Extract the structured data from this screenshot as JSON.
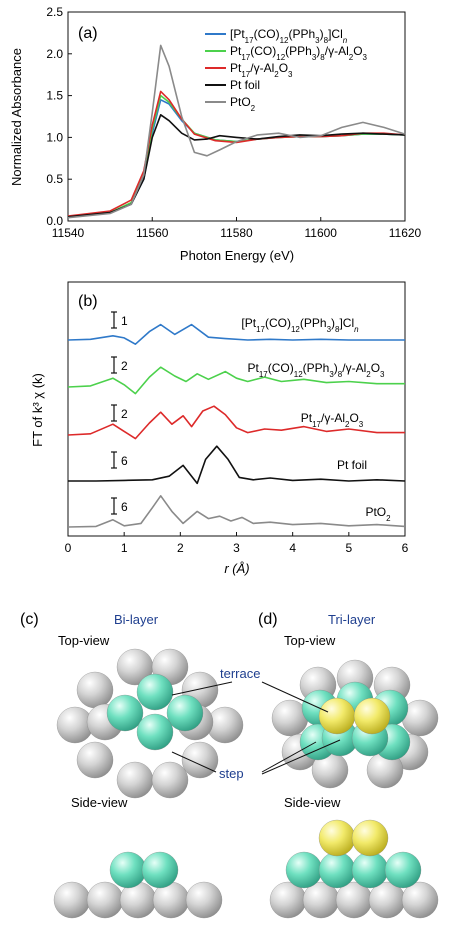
{
  "colors": {
    "blue": "#2f79c9",
    "green": "#4cd14c",
    "red": "#dd2a2a",
    "black": "#111111",
    "gray": "#8a8a8a",
    "teal": "#6fe0c0",
    "silver": "#d0d0d0",
    "yellow": "#f2ea6a",
    "label_blue": "#1f3f8f"
  },
  "chart_data": [
    {
      "panel": "(a)",
      "type": "line",
      "xlabel": "Photon Energy (eV)",
      "ylabel": "Normalized Absorbance",
      "xlim": [
        11540,
        11620
      ],
      "ylim": [
        0,
        2.5
      ],
      "xticks": [
        "11540",
        "11560",
        "11580",
        "11600",
        "11620"
      ],
      "yticks": [
        "0.0",
        "0.5",
        "1.0",
        "1.5",
        "2.0",
        "2.5"
      ],
      "legend_position": "top-right",
      "legend": [
        {
          "pre": "[Pt",
          "parts": [
            [
              "17",
              "sub"
            ],
            [
              "(CO)",
              ""
            ],
            [
              "12",
              "sub"
            ],
            [
              "(PPh",
              ""
            ],
            [
              "3",
              "sub"
            ],
            [
              ")",
              ""
            ],
            [
              "8",
              "sub"
            ],
            [
              "]Cl",
              ""
            ],
            [
              "n",
              "sub-i"
            ]
          ],
          "color": "blue"
        },
        {
          "parts": [
            [
              "Pt",
              ""
            ],
            [
              "17",
              "sub"
            ],
            [
              "(CO)",
              ""
            ],
            [
              "12",
              "sub"
            ],
            [
              "(PPh",
              ""
            ],
            [
              "3",
              "sub"
            ],
            [
              ")",
              ""
            ],
            [
              "8",
              "sub"
            ],
            [
              "/γ-Al",
              ""
            ],
            [
              "2",
              "sub"
            ],
            [
              "O",
              ""
            ],
            [
              "3",
              "sub"
            ]
          ],
          "color": "green"
        },
        {
          "parts": [
            [
              "Pt",
              ""
            ],
            [
              "17",
              "sub"
            ],
            [
              "/γ-Al",
              ""
            ],
            [
              "2",
              "sub"
            ],
            [
              "O",
              ""
            ],
            [
              "3",
              "sub"
            ]
          ],
          "color": "red"
        },
        {
          "parts": [
            [
              "Pt foil",
              ""
            ]
          ],
          "color": "black"
        },
        {
          "parts": [
            [
              "PtO",
              ""
            ],
            [
              "2",
              "sub"
            ]
          ],
          "color": "gray"
        }
      ],
      "series": [
        {
          "color": "blue",
          "x": [
            11540,
            11550,
            11555,
            11558,
            11560,
            11562,
            11564,
            11567,
            11570,
            11575,
            11580,
            11585,
            11590,
            11595,
            11600,
            11605,
            11610,
            11615,
            11620
          ],
          "y": [
            0.05,
            0.1,
            0.2,
            0.5,
            1.05,
            1.45,
            1.4,
            1.2,
            1.05,
            0.97,
            0.95,
            0.98,
            1.0,
            1.01,
            1.01,
            1.02,
            1.04,
            1.04,
            1.03
          ]
        },
        {
          "color": "green",
          "x": [
            11540,
            11550,
            11555,
            11558,
            11560,
            11562,
            11564,
            11567,
            11570,
            11575,
            11580,
            11585,
            11590,
            11595,
            11600,
            11605,
            11610,
            11615,
            11620
          ],
          "y": [
            0.05,
            0.1,
            0.22,
            0.55,
            1.1,
            1.5,
            1.42,
            1.22,
            1.05,
            0.97,
            0.95,
            0.98,
            1.0,
            1.01,
            1.01,
            1.02,
            1.04,
            1.04,
            1.03
          ]
        },
        {
          "color": "red",
          "x": [
            11540,
            11550,
            11555,
            11558,
            11560,
            11562,
            11564,
            11567,
            11570,
            11575,
            11580,
            11585,
            11590,
            11595,
            11600,
            11605,
            11610,
            11615,
            11620
          ],
          "y": [
            0.06,
            0.12,
            0.25,
            0.6,
            1.15,
            1.55,
            1.45,
            1.22,
            1.04,
            0.96,
            0.94,
            0.98,
            1.0,
            1.01,
            1.01,
            1.02,
            1.05,
            1.05,
            1.03
          ]
        },
        {
          "color": "black",
          "x": [
            11540,
            11550,
            11555,
            11558,
            11560,
            11562,
            11564,
            11567,
            11570,
            11573,
            11576,
            11580,
            11585,
            11590,
            11595,
            11600,
            11605,
            11610,
            11615,
            11620
          ],
          "y": [
            0.05,
            0.1,
            0.2,
            0.5,
            1.0,
            1.27,
            1.2,
            1.05,
            0.97,
            0.98,
            1.02,
            1.0,
            0.98,
            1.01,
            1.03,
            1.02,
            1.04,
            1.05,
            1.04,
            1.03
          ]
        },
        {
          "color": "gray",
          "x": [
            11540,
            11550,
            11555,
            11558,
            11560,
            11562,
            11564,
            11567,
            11570,
            11573,
            11576,
            11580,
            11585,
            11590,
            11595,
            11600,
            11605,
            11610,
            11615,
            11620
          ],
          "y": [
            0.04,
            0.09,
            0.2,
            0.55,
            1.3,
            2.1,
            1.85,
            1.25,
            0.82,
            0.78,
            0.85,
            0.95,
            1.03,
            1.05,
            1.0,
            1.02,
            1.12,
            1.18,
            1.12,
            1.04
          ]
        }
      ]
    },
    {
      "panel": "(b)",
      "type": "line",
      "xlabel": "r (Å)",
      "ylabel": "FT of k³ χ (k)",
      "xlim": [
        0,
        6
      ],
      "xticks": [
        "0",
        "1",
        "2",
        "3",
        "4",
        "5",
        "6"
      ],
      "scale_bars": [
        "1",
        "2",
        "2",
        "6",
        "6"
      ],
      "labels": [
        {
          "parts": [
            [
              "[Pt",
              ""
            ],
            [
              "17",
              "sub"
            ],
            [
              "(CO)",
              ""
            ],
            [
              "12",
              "sub"
            ],
            [
              "(PPh",
              ""
            ],
            [
              "3",
              "sub"
            ],
            [
              ")",
              ""
            ],
            [
              "8",
              "sub"
            ],
            [
              "]Cl",
              ""
            ],
            [
              "n",
              "sub-i"
            ]
          ]
        },
        {
          "parts": [
            [
              "Pt",
              ""
            ],
            [
              "17",
              "sub"
            ],
            [
              "(CO)",
              ""
            ],
            [
              "12",
              "sub"
            ],
            [
              "(PPh",
              ""
            ],
            [
              "3",
              "sub"
            ],
            [
              ")",
              ""
            ],
            [
              "8",
              "sub"
            ],
            [
              "/γ-Al",
              ""
            ],
            [
              "2",
              "sub"
            ],
            [
              "O",
              ""
            ],
            [
              "3",
              "sub"
            ]
          ]
        },
        {
          "parts": [
            [
              "Pt",
              ""
            ],
            [
              "17",
              "sub"
            ],
            [
              "/γ-Al",
              ""
            ],
            [
              "2",
              "sub"
            ],
            [
              "O",
              ""
            ],
            [
              "3",
              "sub"
            ]
          ]
        },
        {
          "parts": [
            [
              "Pt foil",
              ""
            ]
          ]
        },
        {
          "parts": [
            [
              "PtO",
              ""
            ],
            [
              "2",
              "sub"
            ]
          ]
        }
      ],
      "series": [
        {
          "color": "blue",
          "x": [
            0,
            0.4,
            0.8,
            1.0,
            1.2,
            1.45,
            1.65,
            1.9,
            2.2,
            2.5,
            2.8,
            3.2,
            3.6,
            4.0,
            4.5,
            5.0,
            5.5,
            6.0
          ],
          "y": [
            0,
            0.05,
            0.3,
            0.15,
            -0.3,
            0.6,
            1.1,
            0.4,
            1.1,
            0.2,
            0.1,
            0.0,
            0.05,
            0.0,
            0.05,
            0.0,
            0.0,
            0.0
          ]
        },
        {
          "color": "green",
          "x": [
            0,
            0.4,
            0.8,
            1.0,
            1.2,
            1.45,
            1.65,
            1.9,
            2.1,
            2.3,
            2.5,
            2.8,
            3.0,
            3.2,
            3.5,
            3.8,
            4.2,
            4.6,
            5.0,
            5.5,
            6.0
          ],
          "y": [
            0,
            0.1,
            0.8,
            0.2,
            -0.6,
            0.9,
            1.8,
            1.0,
            0.5,
            1.2,
            0.7,
            1.4,
            0.8,
            0.5,
            0.9,
            0.5,
            0.7,
            0.4,
            0.5,
            0.3,
            0.3
          ]
        },
        {
          "color": "red",
          "x": [
            0,
            0.4,
            0.8,
            1.0,
            1.2,
            1.45,
            1.65,
            1.85,
            2.05,
            2.2,
            2.4,
            2.6,
            2.8,
            3.0,
            3.2,
            3.5,
            3.8,
            4.2,
            4.6,
            5.0,
            5.5,
            6.0
          ],
          "y": [
            0,
            0.1,
            0.9,
            0.3,
            -0.3,
            1.0,
            1.9,
            0.9,
            1.6,
            0.7,
            2.0,
            2.4,
            1.7,
            0.6,
            0.2,
            0.5,
            0.4,
            0.7,
            0.3,
            0.5,
            0.2,
            0.2
          ]
        },
        {
          "color": "black",
          "x": [
            0,
            0.5,
            1.0,
            1.5,
            1.8,
            2.05,
            2.2,
            2.3,
            2.45,
            2.65,
            2.85,
            3.05,
            3.3,
            3.6,
            4.0,
            4.5,
            5.0,
            5.5,
            6.0
          ],
          "y": [
            0,
            0.0,
            0.05,
            0.1,
            0.4,
            1.3,
            0.4,
            -0.2,
            1.8,
            2.9,
            1.8,
            0.3,
            0.1,
            0.25,
            0.05,
            0.15,
            0.0,
            0.1,
            0.0
          ]
        },
        {
          "color": "gray",
          "x": [
            0,
            0.5,
            0.8,
            1.0,
            1.3,
            1.5,
            1.65,
            1.85,
            2.05,
            2.3,
            2.5,
            2.7,
            2.9,
            3.1,
            3.3,
            3.6,
            4.0,
            4.5,
            5.0,
            5.5,
            6.0
          ],
          "y": [
            0,
            0.05,
            0.6,
            0.1,
            0.3,
            1.6,
            2.6,
            1.3,
            0.3,
            1.3,
            0.7,
            0.9,
            0.5,
            0.8,
            0.3,
            0.4,
            0.2,
            0.3,
            0.1,
            0.2,
            0.05
          ]
        }
      ]
    }
  ],
  "panel_c": {
    "tag": "(c)",
    "title": "Bi-layer",
    "top_view": "Top-view",
    "side_view": "Side-view"
  },
  "panel_d": {
    "tag": "(d)",
    "title": "Tri-layer",
    "top_view": "Top-view",
    "side_view": "Side-view"
  },
  "annotations": {
    "terrace": "terrace",
    "step": "step"
  }
}
